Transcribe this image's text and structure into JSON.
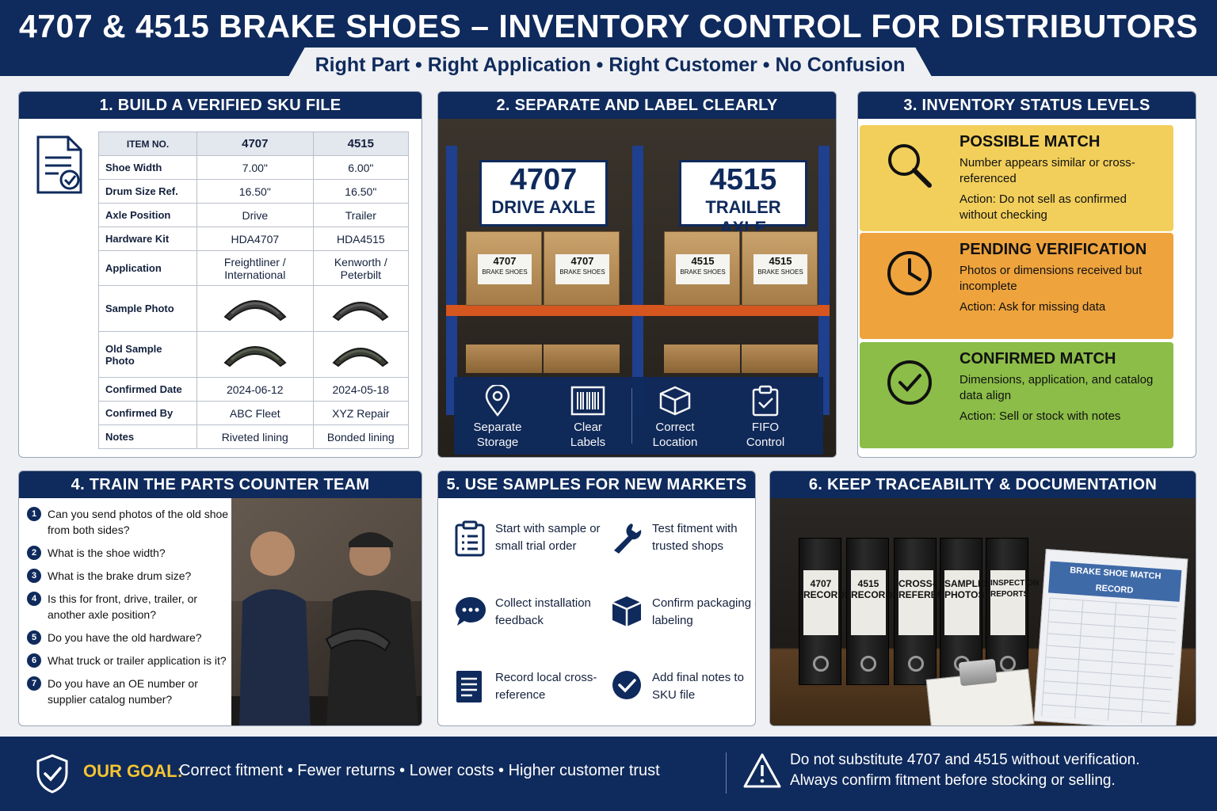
{
  "header": {
    "title": "4707 & 4515 BRAKE SHOES – INVENTORY CONTROL FOR DISTRIBUTORS",
    "subtitle": "Right Part • Right Application • Right Customer • No Confusion"
  },
  "panel1": {
    "title": "1. BUILD A VERIFIED SKU FILE",
    "icon": "document-check-icon",
    "columns": [
      "ITEM NO.",
      "4707",
      "4515"
    ],
    "rows": [
      {
        "label": "Shoe Width",
        "a": "7.00\"",
        "b": "6.00\""
      },
      {
        "label": "Drum Size Ref.",
        "a": "16.50\"",
        "b": "16.50\""
      },
      {
        "label": "Axle Position",
        "a": "Drive",
        "b": "Trailer"
      },
      {
        "label": "Hardware Kit",
        "a": "HDA4707",
        "b": "HDA4515"
      },
      {
        "label": "Application",
        "a": "Freightliner / International",
        "b": "Kenworth / Peterbilt"
      },
      {
        "label": "Sample Photo"
      },
      {
        "label": "Old Sample Photo"
      },
      {
        "label": "Confirmed Date",
        "a": "2024-06-12",
        "b": "2024-05-18"
      },
      {
        "label": "Confirmed By",
        "a": "ABC Fleet",
        "b": "XYZ Repair"
      },
      {
        "label": "Notes",
        "a": "Riveted lining",
        "b": "Bonded lining"
      }
    ]
  },
  "panel2": {
    "title": "2. SEPARATE AND LABEL CLEARLY",
    "signs": [
      {
        "number": "4707",
        "axle": "DRIVE AXLE"
      },
      {
        "number": "4515",
        "axle": "TRAILER AXLE"
      }
    ],
    "box_labels": [
      {
        "number": "4707",
        "text": "BRAKE SHOES"
      },
      {
        "number": "4707",
        "text": "BRAKE SHOES"
      },
      {
        "number": "4515",
        "text": "BRAKE SHOES"
      },
      {
        "number": "4515",
        "text": "BRAKE SHOES"
      }
    ],
    "features": [
      {
        "icon": "location-pin-icon",
        "line1": "Separate",
        "line2": "Storage"
      },
      {
        "icon": "barcode-icon",
        "line1": "Clear",
        "line2": "Labels"
      },
      {
        "icon": "box-icon",
        "line1": "Correct",
        "line2": "Location"
      },
      {
        "icon": "clipboard-check-icon",
        "line1": "FIFO",
        "line2": "Control"
      }
    ]
  },
  "panel3": {
    "title": "3. INVENTORY STATUS LEVELS",
    "levels": [
      {
        "icon": "magnifier-icon",
        "color": "#f2cf5b",
        "name": "POSSIBLE MATCH",
        "desc": "Number appears similar or cross-referenced",
        "action": "Action: Do not sell as confirmed without checking"
      },
      {
        "icon": "clock-icon",
        "color": "#eea33d",
        "name": "PENDING VERIFICATION",
        "desc": "Photos or dimensions received but incomplete",
        "action": "Action: Ask for missing data"
      },
      {
        "icon": "check-circle-icon",
        "color": "#8bbd48",
        "name": "CONFIRMED MATCH",
        "desc": "Dimensions, application, and catalog data align",
        "action": "Action: Sell or stock with notes"
      }
    ]
  },
  "panel4": {
    "title": "4. TRAIN THE PARTS COUNTER TEAM",
    "questions": [
      "Can you send photos of the old shoe from both sides?",
      "What is the shoe width?",
      "What is the brake drum size?",
      "Is this for front, drive, trailer, or another axle position?",
      "Do you have the old hardware?",
      "What truck or trailer application is it?",
      "Do you have an OE number or supplier catalog number?"
    ]
  },
  "panel5": {
    "title": "5. USE SAMPLES FOR NEW MARKETS",
    "tips": [
      {
        "icon": "clipboard-list-icon",
        "text": "Start with sample or small trial order"
      },
      {
        "icon": "wrench-icon",
        "text": "Test fitment with trusted shops"
      },
      {
        "icon": "chat-bubble-icon",
        "text": "Collect installation feedback"
      },
      {
        "icon": "package-icon",
        "text": "Confirm packaging & labeling"
      },
      {
        "icon": "document-lines-icon",
        "text": "Record local cross-reference"
      },
      {
        "icon": "check-badge-icon",
        "text": "Add final notes to SKU file"
      }
    ]
  },
  "panel6": {
    "title": "6. KEEP TRACEABILITY & DOCUMENTATION",
    "binders": [
      {
        "line1": "4707",
        "line2": "RECORDS"
      },
      {
        "line1": "4515",
        "line2": "RECORDS"
      },
      {
        "line1": "CROSS-",
        "line2": "REFERENCE"
      },
      {
        "line1": "SAMPLES",
        "line2": "PHOTOS"
      },
      {
        "line1": "INSPECTION",
        "line2": "REPORTS"
      }
    ],
    "record_title": "BRAKE SHOE MATCH RECORD"
  },
  "footer": {
    "goal_label": "OUR GOAL:",
    "goal_text": "Correct fitment • Fewer returns • Lower costs • Higher customer trust",
    "warning_line1": "Do not substitute 4707 and 4515 without verification.",
    "warning_line2": "Always confirm fitment before stocking or selling."
  }
}
